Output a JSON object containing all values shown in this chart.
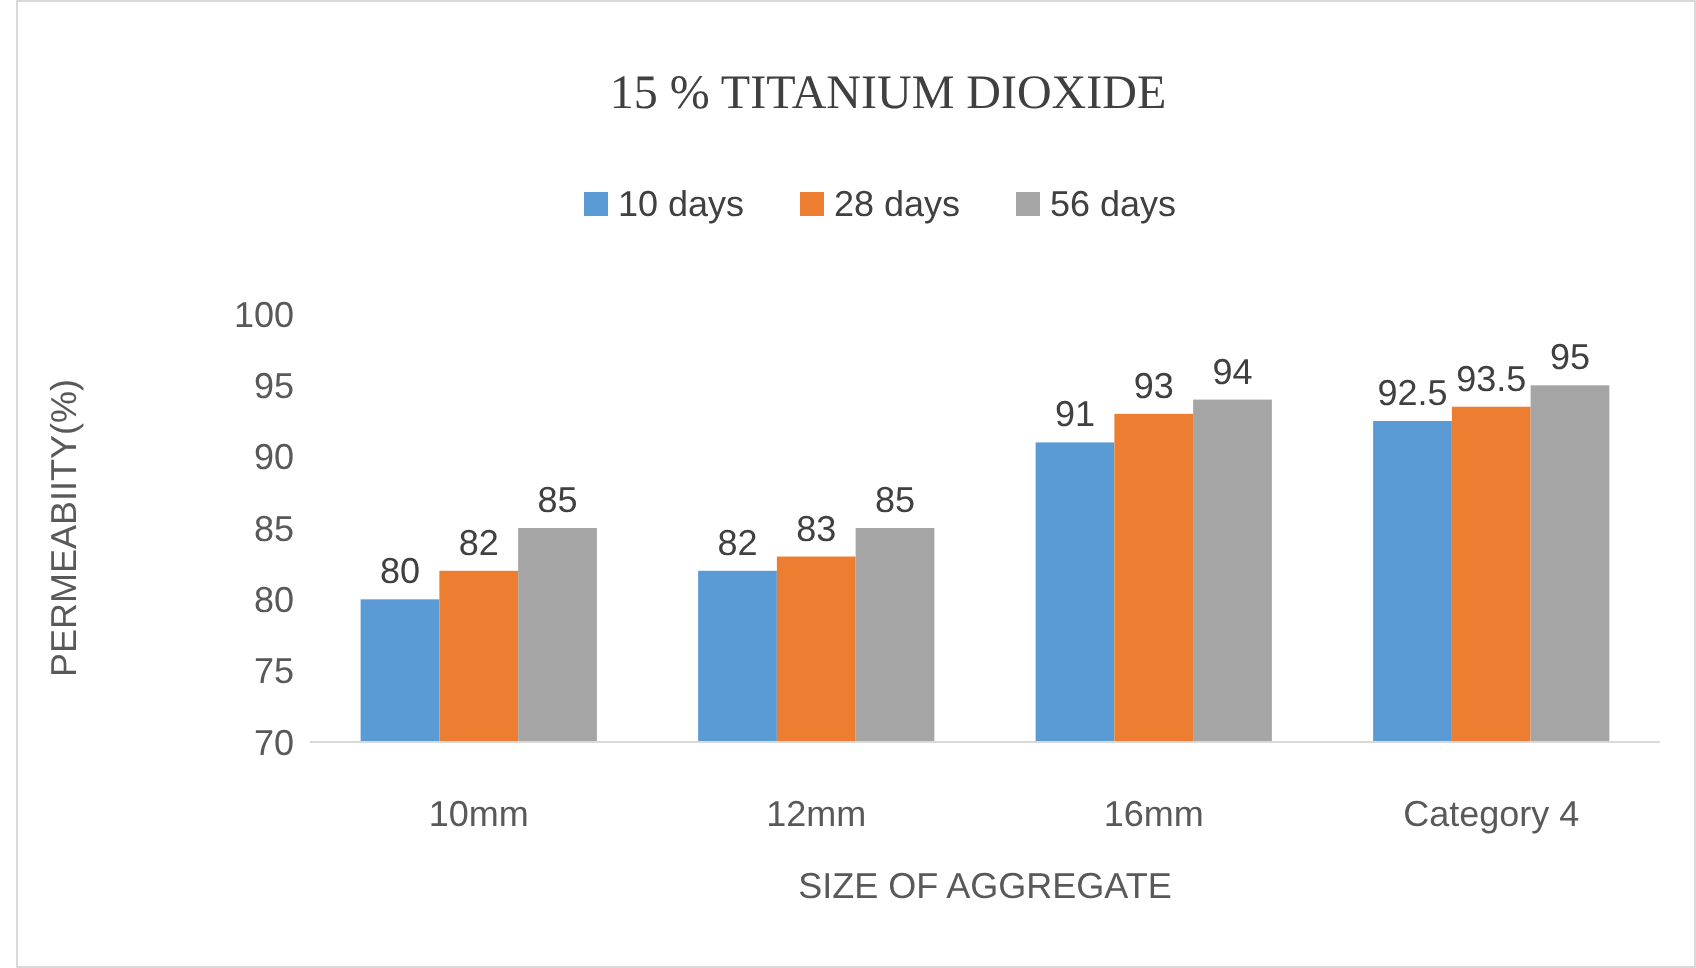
{
  "chart_data": {
    "type": "bar",
    "title": "15 % TITANIUM  DIOXIDE",
    "xlabel": "SIZE OF AGGREGATE",
    "ylabel": "PERMEABIITY(%)",
    "categories": [
      "10mm",
      "12mm",
      "16mm",
      "Category 4"
    ],
    "series": [
      {
        "name": "10 days",
        "color": "#5b9bd5",
        "values": [
          80,
          82,
          91,
          92.5
        ]
      },
      {
        "name": "28 days",
        "color": "#ed7d31",
        "values": [
          82,
          83,
          93,
          93.5
        ]
      },
      {
        "name": "56 days",
        "color": "#a5a5a5",
        "values": [
          85,
          85,
          94,
          95
        ]
      }
    ],
    "ylim": [
      70,
      100
    ],
    "yticks": [
      70,
      75,
      80,
      85,
      90,
      95,
      100
    ],
    "grid": false,
    "legend": "top",
    "data_labels": true
  }
}
